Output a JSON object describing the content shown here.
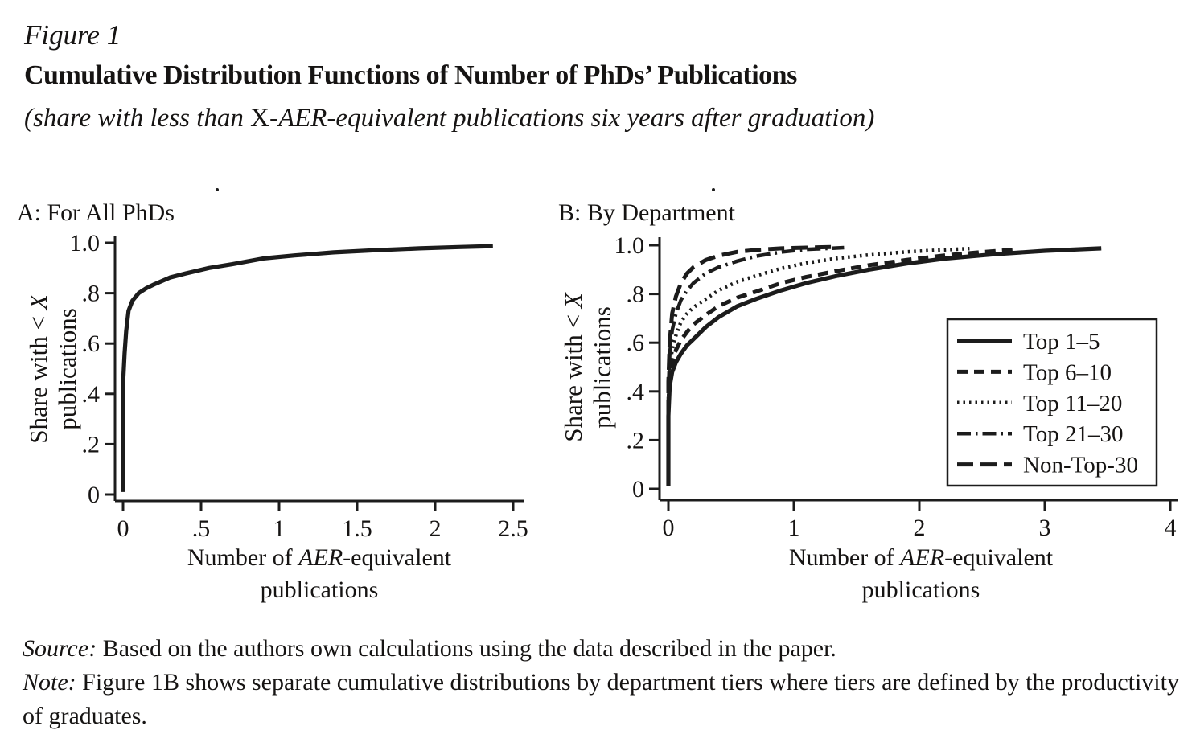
{
  "figure": {
    "label": "Figure 1",
    "title": "Cumulative Distribution Functions of Number of PhDs’ Publications",
    "subtitle_pre": "(share with less than ",
    "subtitle_x": "X",
    "subtitle_post": "-AER-equivalent publications six years after graduation)"
  },
  "footer": {
    "source_label": "Source:",
    "source_text": " Based on the authors own calculations using the data described in the paper.",
    "note_label": "Note:",
    "note_text": " Figure 1B shows separate cumulative distributions by department tiers where tiers are defined by the productivity of graduates."
  },
  "chart_data": [
    {
      "id": "panel-a",
      "type": "line",
      "title": "A: For All PhDs",
      "ylabel": {
        "pre": "Share with < ",
        "x": "X",
        "line2": "publications"
      },
      "xlabel": {
        "pre": "Number of ",
        "em": "AER",
        "post": "-equivalent",
        "line2": "publications"
      },
      "xlim": [
        0,
        2.5
      ],
      "ylim": [
        0,
        1.0
      ],
      "grid": false,
      "xticks": {
        "values": [
          0,
          0.5,
          1,
          1.5,
          2,
          2.5
        ],
        "labels": [
          "0",
          ".5",
          "1",
          "1.5",
          "2",
          "2.5"
        ]
      },
      "yticks": {
        "values": [
          0,
          0.2,
          0.4,
          0.6,
          0.8,
          1.0
        ],
        "labels": [
          "0",
          ".2",
          ".4",
          ".6",
          ".8",
          "1.0"
        ]
      },
      "series": [
        {
          "name": "All PhDs",
          "style": "solid",
          "x": [
            0,
            0,
            0.01,
            0.02,
            0.035,
            0.06,
            0.1,
            0.15,
            0.2,
            0.3,
            0.4,
            0.55,
            0.7,
            0.9,
            1.1,
            1.35,
            1.6,
            1.9,
            2.15,
            2.37
          ],
          "y": [
            0.01,
            0.44,
            0.56,
            0.65,
            0.73,
            0.77,
            0.8,
            0.82,
            0.835,
            0.862,
            0.878,
            0.9,
            0.915,
            0.938,
            0.95,
            0.962,
            0.97,
            0.978,
            0.983,
            0.987
          ]
        }
      ]
    },
    {
      "id": "panel-b",
      "type": "line",
      "title": "B: By Department",
      "ylabel": {
        "pre": "Share with < ",
        "x": "X",
        "line2": "publications"
      },
      "xlabel": {
        "pre": "Number of ",
        "em": "AER",
        "post": "-equivalent",
        "line2": "publications"
      },
      "xlim": [
        0,
        4
      ],
      "ylim": [
        0,
        1.0
      ],
      "grid": false,
      "xticks": {
        "values": [
          0,
          1,
          2,
          3,
          4
        ],
        "labels": [
          "0",
          "1",
          "2",
          "3",
          "4"
        ]
      },
      "yticks": {
        "values": [
          0,
          0.2,
          0.4,
          0.6,
          0.8,
          1.0
        ],
        "labels": [
          "0",
          ".2",
          ".4",
          ".6",
          ".8",
          "1.0"
        ]
      },
      "legend": {
        "position": "lower right",
        "entries": [
          {
            "label": "Top 1–5",
            "style": "solid"
          },
          {
            "label": "Top 6–10",
            "style": "dash"
          },
          {
            "label": "Top 11–20",
            "style": "dot"
          },
          {
            "label": "Top 21–30",
            "style": "dashdot"
          },
          {
            "label": "Non-Top-30",
            "style": "longdash"
          }
        ]
      },
      "series": [
        {
          "name": "Top 1–5",
          "style": "solid",
          "x": [
            0,
            0,
            0.01,
            0.03,
            0.06,
            0.1,
            0.15,
            0.2,
            0.3,
            0.4,
            0.55,
            0.7,
            0.9,
            1.1,
            1.35,
            1.6,
            1.9,
            2.2,
            2.6,
            3.0,
            3.45
          ],
          "y": [
            0.01,
            0.3,
            0.42,
            0.48,
            0.52,
            0.555,
            0.59,
            0.615,
            0.665,
            0.705,
            0.75,
            0.78,
            0.815,
            0.845,
            0.875,
            0.9,
            0.925,
            0.945,
            0.963,
            0.977,
            0.987
          ]
        },
        {
          "name": "Top 6–10",
          "style": "dash",
          "x": [
            0,
            0,
            0.01,
            0.03,
            0.06,
            0.1,
            0.15,
            0.2,
            0.3,
            0.4,
            0.55,
            0.7,
            0.9,
            1.1,
            1.35,
            1.6,
            1.9,
            2.2,
            2.5,
            2.75
          ],
          "y": [
            0.01,
            0.33,
            0.46,
            0.52,
            0.57,
            0.61,
            0.645,
            0.675,
            0.715,
            0.75,
            0.785,
            0.81,
            0.845,
            0.87,
            0.895,
            0.918,
            0.94,
            0.958,
            0.972,
            0.982
          ]
        },
        {
          "name": "Top 11–20",
          "style": "dot",
          "x": [
            0,
            0,
            0.01,
            0.03,
            0.06,
            0.1,
            0.15,
            0.2,
            0.3,
            0.4,
            0.55,
            0.7,
            0.9,
            1.1,
            1.35,
            1.6,
            1.9,
            2.15,
            2.4
          ],
          "y": [
            0.01,
            0.36,
            0.5,
            0.57,
            0.63,
            0.685,
            0.72,
            0.745,
            0.78,
            0.815,
            0.85,
            0.875,
            0.905,
            0.927,
            0.947,
            0.96,
            0.973,
            0.98,
            0.986
          ]
        },
        {
          "name": "Top 21–30",
          "style": "dashdot",
          "x": [
            0,
            0,
            0.01,
            0.03,
            0.06,
            0.1,
            0.15,
            0.2,
            0.3,
            0.4,
            0.55,
            0.7,
            0.9,
            1.1,
            1.4
          ],
          "y": [
            0.01,
            0.4,
            0.55,
            0.65,
            0.72,
            0.775,
            0.815,
            0.845,
            0.885,
            0.91,
            0.935,
            0.955,
            0.972,
            0.983,
            0.99
          ]
        },
        {
          "name": "Non-Top-30",
          "style": "longdash",
          "x": [
            0,
            0,
            0.01,
            0.03,
            0.06,
            0.1,
            0.15,
            0.2,
            0.3,
            0.4,
            0.55,
            0.7,
            0.9,
            1.1,
            1.32
          ],
          "y": [
            0.01,
            0.44,
            0.6,
            0.72,
            0.79,
            0.845,
            0.885,
            0.91,
            0.94,
            0.957,
            0.973,
            0.981,
            0.987,
            0.99,
            0.993
          ]
        }
      ]
    }
  ]
}
